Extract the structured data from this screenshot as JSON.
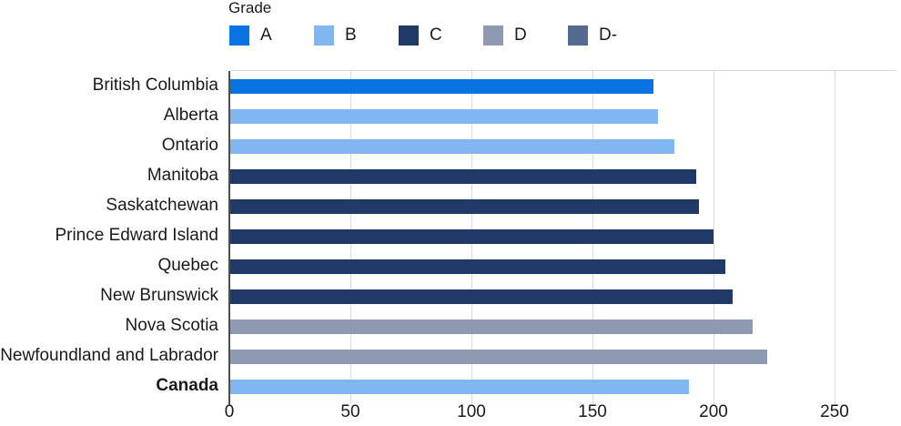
{
  "chart_data": {
    "type": "bar",
    "orientation": "horizontal",
    "title": "",
    "legend": {
      "title": "Grade",
      "position": "top",
      "items": [
        {
          "label": "A",
          "color": "#0873e1"
        },
        {
          "label": "B",
          "color": "#81b6f1"
        },
        {
          "label": "C",
          "color": "#1f3a66"
        },
        {
          "label": "D",
          "color": "#8e9ab1"
        },
        {
          "label": "D-",
          "color": "#546a91"
        }
      ]
    },
    "rows": [
      {
        "label": "British Columbia",
        "value": 175,
        "grade": "A"
      },
      {
        "label": "Alberta",
        "value": 177,
        "grade": "B"
      },
      {
        "label": "Ontario",
        "value": 184,
        "grade": "B"
      },
      {
        "label": "Manitoba",
        "value": 193,
        "grade": "C"
      },
      {
        "label": "Saskatchewan",
        "value": 194,
        "grade": "C"
      },
      {
        "label": "Prince Edward Island",
        "value": 200,
        "grade": "C"
      },
      {
        "label": "Quebec",
        "value": 205,
        "grade": "C"
      },
      {
        "label": "New Brunswick",
        "value": 208,
        "grade": "C"
      },
      {
        "label": "Nova Scotia",
        "value": 216,
        "grade": "D"
      },
      {
        "label": "Newfoundland and Labrador",
        "value": 222,
        "grade": "D"
      },
      {
        "label": "Canada",
        "value": 190,
        "grade": "B",
        "bold": true
      }
    ],
    "xlabel": "",
    "ylabel": "",
    "xlim": [
      0,
      250
    ],
    "xticks": [
      0,
      50,
      100,
      150,
      200,
      250
    ],
    "grid": true,
    "axis_color": "#4d4d4d",
    "gridline_color": "#d9d9d9",
    "text_color": "#1a1a1a"
  }
}
